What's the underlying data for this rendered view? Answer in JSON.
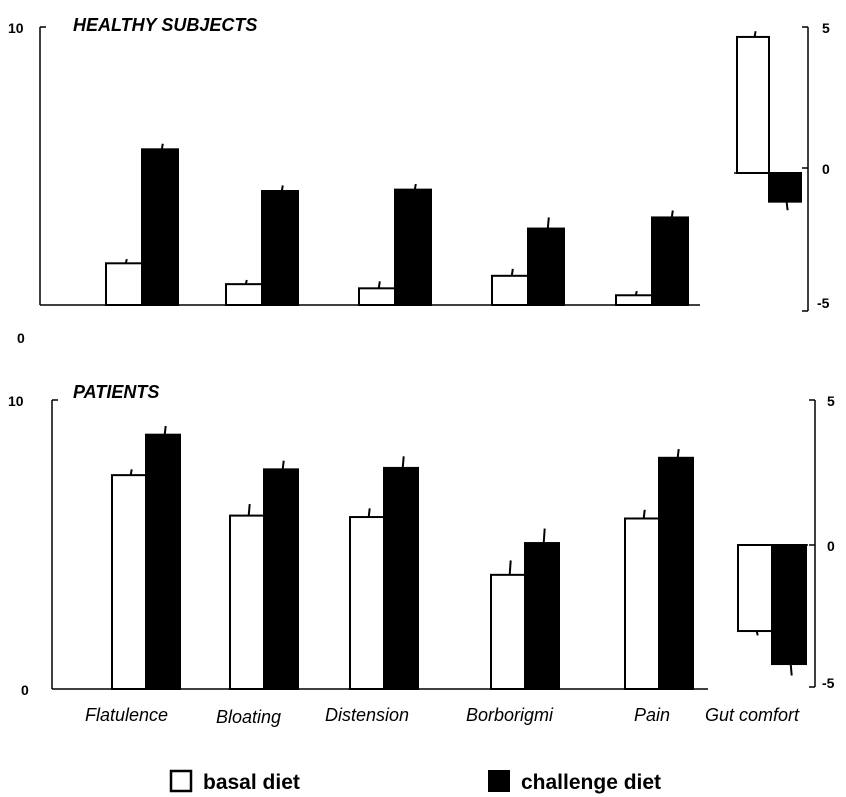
{
  "chart_data": [
    {
      "type": "bar",
      "title": "HEALTHY SUBJECTS",
      "categories": [
        "Flatulence",
        "Bloating",
        "Distension",
        "Borborigmi",
        "Pain"
      ],
      "ylim": [
        0,
        10
      ],
      "y_ticks": [
        "0",
        "10"
      ],
      "series": [
        {
          "name": "basal diet",
          "values": [
            1.5,
            0.75,
            0.6,
            1.05,
            0.35
          ],
          "errors": [
            0.15,
            0.15,
            0.25,
            0.25,
            0.15
          ]
        },
        {
          "name": "challenge diet",
          "values": [
            5.6,
            4.1,
            4.15,
            2.75,
            3.15
          ],
          "errors": [
            0.2,
            0.2,
            0.2,
            0.4,
            0.25
          ]
        }
      ],
      "gut_comfort": {
        "category": "",
        "ylim": [
          -5,
          5
        ],
        "y_ticks": [
          "-5",
          "0",
          "5"
        ],
        "basal": 4.65,
        "basal_error": 0.2,
        "challenge": -1.15,
        "challenge_error": 0.3
      }
    },
    {
      "type": "bar",
      "title": "PATIENTS",
      "categories": [
        "Flatulence",
        "Bloating",
        "Distension",
        "Borborigmi",
        "Pain"
      ],
      "ylim": [
        0,
        10
      ],
      "y_ticks": [
        "0",
        "10"
      ],
      "series": [
        {
          "name": "basal diet",
          "values": [
            7.4,
            6.0,
            5.95,
            3.95,
            5.9
          ],
          "errors": [
            0.2,
            0.4,
            0.3,
            0.5,
            0.3
          ]
        },
        {
          "name": "challenge diet",
          "values": [
            8.8,
            7.6,
            7.65,
            5.05,
            8.0
          ],
          "errors": [
            0.3,
            0.3,
            0.4,
            0.5,
            0.3
          ]
        }
      ],
      "gut_comfort": {
        "category": "Gut comfort",
        "ylim": [
          -5,
          5
        ],
        "y_ticks": [
          "-5",
          "0",
          "5"
        ],
        "basal": -3.05,
        "basal_error": 0.15,
        "challenge": -4.2,
        "challenge_error": 0.4
      }
    }
  ],
  "legend": {
    "basal_label": "basal diet",
    "challenge_label": "challenge diet",
    "basal_color": "#ffffff",
    "challenge_color": "#000000",
    "placement": "bottom"
  },
  "extra_left_tick": "0"
}
